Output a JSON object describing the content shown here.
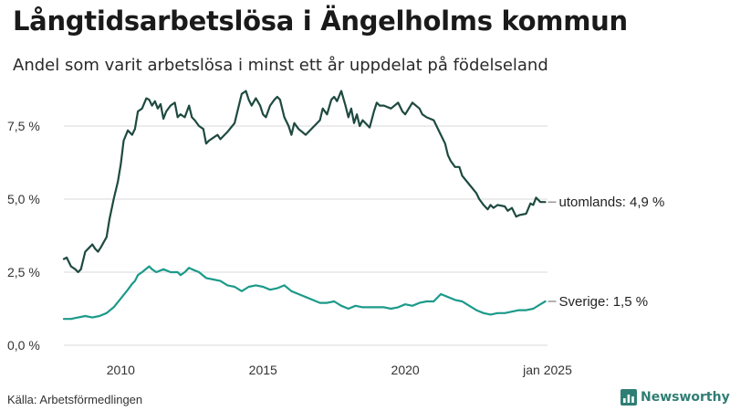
{
  "header": {
    "title": "Långtidsarbetslösa i Ängelholms kommun",
    "subtitle": "Andel som varit arbetslösa i minst ett år uppdelat på födelseland"
  },
  "footer": {
    "source": "Källa: Arbetsförmedlingen",
    "brand": "Newsworthy"
  },
  "colors": {
    "utomlands": "#1e4a40",
    "sverige": "#1c9a8a",
    "grid": "#d9d9d9",
    "brand": "#2f7e73"
  },
  "chart_data": {
    "type": "line",
    "title": "Långtidsarbetslösa i Ängelholms kommun",
    "subtitle": "Andel som varit arbetslösa i minst ett år uppdelat på födelseland",
    "x_range": [
      2008.0,
      2025.0
    ],
    "x_ticks": [
      2010,
      2015,
      2020,
      2025
    ],
    "x_tick_labels": [
      "2010",
      "2015",
      "2020",
      "jan 2025"
    ],
    "ylim": [
      0,
      9
    ],
    "y_ticks": [
      0,
      2.5,
      5.0,
      7.5
    ],
    "y_tick_labels": [
      "0,0 %",
      "2,5 %",
      "5,0 %",
      "7,5 %"
    ],
    "grid": true,
    "series": [
      {
        "name": "utomlands",
        "end_label": "utomlands: 4,9 %",
        "points": [
          [
            2008.0,
            2.95
          ],
          [
            2008.1,
            3.0
          ],
          [
            2008.25,
            2.7
          ],
          [
            2008.4,
            2.6
          ],
          [
            2008.5,
            2.5
          ],
          [
            2008.6,
            2.6
          ],
          [
            2008.75,
            3.2
          ],
          [
            2008.9,
            3.35
          ],
          [
            2009.0,
            3.45
          ],
          [
            2009.1,
            3.3
          ],
          [
            2009.2,
            3.2
          ],
          [
            2009.3,
            3.35
          ],
          [
            2009.5,
            3.7
          ],
          [
            2009.6,
            4.3
          ],
          [
            2009.75,
            5.0
          ],
          [
            2009.9,
            5.6
          ],
          [
            2010.0,
            6.2
          ],
          [
            2010.1,
            7.0
          ],
          [
            2010.25,
            7.35
          ],
          [
            2010.4,
            7.2
          ],
          [
            2010.5,
            7.4
          ],
          [
            2010.6,
            8.0
          ],
          [
            2010.75,
            8.1
          ],
          [
            2010.9,
            8.45
          ],
          [
            2011.0,
            8.4
          ],
          [
            2011.1,
            8.2
          ],
          [
            2011.2,
            8.35
          ],
          [
            2011.3,
            8.1
          ],
          [
            2011.4,
            8.25
          ],
          [
            2011.5,
            7.75
          ],
          [
            2011.6,
            8.0
          ],
          [
            2011.75,
            8.2
          ],
          [
            2011.9,
            8.3
          ],
          [
            2012.0,
            7.8
          ],
          [
            2012.1,
            7.9
          ],
          [
            2012.25,
            7.8
          ],
          [
            2012.4,
            8.2
          ],
          [
            2012.5,
            7.8
          ],
          [
            2012.6,
            7.7
          ],
          [
            2012.75,
            7.5
          ],
          [
            2012.9,
            7.4
          ],
          [
            2013.0,
            6.9
          ],
          [
            2013.1,
            7.0
          ],
          [
            2013.25,
            7.1
          ],
          [
            2013.4,
            7.2
          ],
          [
            2013.5,
            7.05
          ],
          [
            2013.75,
            7.3
          ],
          [
            2014.0,
            7.6
          ],
          [
            2014.1,
            8.0
          ],
          [
            2014.25,
            8.6
          ],
          [
            2014.4,
            8.7
          ],
          [
            2014.5,
            8.4
          ],
          [
            2014.6,
            8.2
          ],
          [
            2014.75,
            8.45
          ],
          [
            2014.9,
            8.2
          ],
          [
            2015.0,
            7.9
          ],
          [
            2015.1,
            7.8
          ],
          [
            2015.25,
            8.2
          ],
          [
            2015.4,
            8.4
          ],
          [
            2015.5,
            8.5
          ],
          [
            2015.6,
            8.4
          ],
          [
            2015.75,
            7.8
          ],
          [
            2015.9,
            7.5
          ],
          [
            2016.0,
            7.2
          ],
          [
            2016.1,
            7.6
          ],
          [
            2016.25,
            7.4
          ],
          [
            2016.5,
            7.2
          ],
          [
            2016.75,
            7.45
          ],
          [
            2017.0,
            7.7
          ],
          [
            2017.1,
            8.1
          ],
          [
            2017.25,
            7.9
          ],
          [
            2017.4,
            8.4
          ],
          [
            2017.5,
            8.5
          ],
          [
            2017.6,
            8.35
          ],
          [
            2017.75,
            8.7
          ],
          [
            2017.9,
            8.2
          ],
          [
            2018.0,
            7.8
          ],
          [
            2018.1,
            8.1
          ],
          [
            2018.2,
            7.6
          ],
          [
            2018.3,
            7.9
          ],
          [
            2018.4,
            7.5
          ],
          [
            2018.5,
            7.7
          ],
          [
            2018.75,
            7.45
          ],
          [
            2018.9,
            8.0
          ],
          [
            2019.0,
            8.3
          ],
          [
            2019.1,
            8.2
          ],
          [
            2019.25,
            8.2
          ],
          [
            2019.5,
            8.1
          ],
          [
            2019.75,
            8.3
          ],
          [
            2019.9,
            8.0
          ],
          [
            2020.0,
            7.9
          ],
          [
            2020.25,
            8.3
          ],
          [
            2020.5,
            8.1
          ],
          [
            2020.6,
            7.9
          ],
          [
            2020.75,
            7.8
          ],
          [
            2021.0,
            7.7
          ],
          [
            2021.25,
            7.2
          ],
          [
            2021.4,
            6.9
          ],
          [
            2021.5,
            6.5
          ],
          [
            2021.6,
            6.3
          ],
          [
            2021.75,
            6.1
          ],
          [
            2021.9,
            6.1
          ],
          [
            2022.0,
            5.8
          ],
          [
            2022.25,
            5.5
          ],
          [
            2022.5,
            5.2
          ],
          [
            2022.6,
            5.0
          ],
          [
            2022.75,
            4.8
          ],
          [
            2022.9,
            4.65
          ],
          [
            2023.0,
            4.8
          ],
          [
            2023.1,
            4.7
          ],
          [
            2023.25,
            4.8
          ],
          [
            2023.5,
            4.75
          ],
          [
            2023.6,
            4.6
          ],
          [
            2023.75,
            4.7
          ],
          [
            2023.9,
            4.4
          ],
          [
            2024.0,
            4.45
          ],
          [
            2024.25,
            4.5
          ],
          [
            2024.4,
            4.85
          ],
          [
            2024.5,
            4.8
          ],
          [
            2024.6,
            5.05
          ],
          [
            2024.75,
            4.9
          ],
          [
            2024.92,
            4.9
          ]
        ]
      },
      {
        "name": "Sverige",
        "end_label": "Sverige: 1,5 %",
        "points": [
          [
            2008.0,
            0.9
          ],
          [
            2008.25,
            0.9
          ],
          [
            2008.5,
            0.95
          ],
          [
            2008.75,
            1.0
          ],
          [
            2009.0,
            0.95
          ],
          [
            2009.25,
            1.0
          ],
          [
            2009.5,
            1.1
          ],
          [
            2009.75,
            1.3
          ],
          [
            2010.0,
            1.6
          ],
          [
            2010.25,
            1.9
          ],
          [
            2010.4,
            2.1
          ],
          [
            2010.5,
            2.2
          ],
          [
            2010.6,
            2.4
          ],
          [
            2010.75,
            2.5
          ],
          [
            2011.0,
            2.7
          ],
          [
            2011.1,
            2.6
          ],
          [
            2011.25,
            2.5
          ],
          [
            2011.5,
            2.6
          ],
          [
            2011.75,
            2.5
          ],
          [
            2012.0,
            2.5
          ],
          [
            2012.1,
            2.4
          ],
          [
            2012.25,
            2.5
          ],
          [
            2012.4,
            2.65
          ],
          [
            2012.5,
            2.6
          ],
          [
            2012.75,
            2.5
          ],
          [
            2013.0,
            2.3
          ],
          [
            2013.25,
            2.25
          ],
          [
            2013.5,
            2.2
          ],
          [
            2013.75,
            2.05
          ],
          [
            2014.0,
            2.0
          ],
          [
            2014.25,
            1.85
          ],
          [
            2014.5,
            2.0
          ],
          [
            2014.75,
            2.05
          ],
          [
            2015.0,
            2.0
          ],
          [
            2015.25,
            1.9
          ],
          [
            2015.5,
            1.95
          ],
          [
            2015.75,
            2.05
          ],
          [
            2016.0,
            1.85
          ],
          [
            2016.25,
            1.75
          ],
          [
            2016.5,
            1.65
          ],
          [
            2016.75,
            1.55
          ],
          [
            2017.0,
            1.45
          ],
          [
            2017.25,
            1.45
          ],
          [
            2017.5,
            1.5
          ],
          [
            2017.75,
            1.35
          ],
          [
            2018.0,
            1.25
          ],
          [
            2018.25,
            1.35
          ],
          [
            2018.5,
            1.3
          ],
          [
            2018.75,
            1.3
          ],
          [
            2019.0,
            1.3
          ],
          [
            2019.25,
            1.3
          ],
          [
            2019.5,
            1.25
          ],
          [
            2019.75,
            1.3
          ],
          [
            2020.0,
            1.4
          ],
          [
            2020.25,
            1.35
          ],
          [
            2020.5,
            1.45
          ],
          [
            2020.75,
            1.5
          ],
          [
            2021.0,
            1.5
          ],
          [
            2021.25,
            1.75
          ],
          [
            2021.5,
            1.65
          ],
          [
            2021.75,
            1.55
          ],
          [
            2022.0,
            1.5
          ],
          [
            2022.25,
            1.35
          ],
          [
            2022.5,
            1.2
          ],
          [
            2022.75,
            1.1
          ],
          [
            2023.0,
            1.05
          ],
          [
            2023.25,
            1.1
          ],
          [
            2023.5,
            1.1
          ],
          [
            2023.75,
            1.15
          ],
          [
            2024.0,
            1.2
          ],
          [
            2024.25,
            1.2
          ],
          [
            2024.5,
            1.25
          ],
          [
            2024.75,
            1.4
          ],
          [
            2024.92,
            1.5
          ]
        ]
      }
    ]
  }
}
